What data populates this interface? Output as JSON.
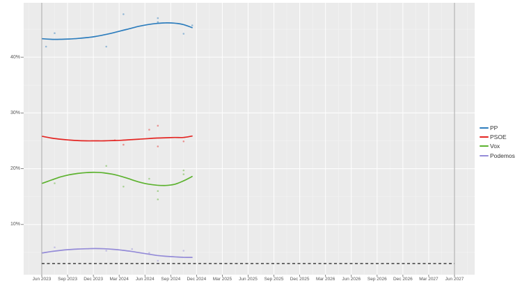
{
  "chart_data": {
    "type": "line",
    "title": "",
    "description": "Spanish opinion polling: smoothed trend lines with individual poll scatter points, 3% threshold dashed line, vertical reference lines at Jun 2023 and Jun 2027",
    "x_axis": {
      "tick_labels": [
        "Jun 2023",
        "Sep 2023",
        "Dec 2023",
        "Mar 2024",
        "Jun 2024",
        "Sep 2024",
        "Dec 2024",
        "Mar 2025",
        "Jun 2025",
        "Sep 2025",
        "Dec 2025",
        "Mar 2026",
        "Jun 2026",
        "Sep 2026",
        "Dec 2026",
        "Mar 2027",
        "Jun 2027"
      ]
    },
    "y_axis": {
      "unit": "%",
      "ticks": [
        {
          "label": "40%",
          "value": 40
        },
        {
          "label": "30%",
          "value": 30
        },
        {
          "label": "20%",
          "value": 20
        },
        {
          "label": "10%",
          "value": 10
        }
      ],
      "minor_tick_values": [
        5,
        15,
        25,
        35,
        45
      ],
      "range": [
        1,
        49.7
      ]
    },
    "threshold": {
      "value": 3,
      "style": "dashed"
    },
    "reference_lines": [
      {
        "date": "2023-06"
      },
      {
        "date": "2027-06"
      }
    ],
    "legend": {
      "position": "right",
      "entries": [
        {
          "label": "PP",
          "color": "#2d7dbd"
        },
        {
          "label": "PSOE",
          "color": "#e42522"
        },
        {
          "label": "Vox",
          "color": "#5cb22e"
        },
        {
          "label": "Podemos",
          "color": "#948bd8"
        }
      ]
    },
    "series": [
      {
        "name": "PP",
        "color": "#2d7dbd",
        "trend": {
          "from": "2023-06",
          "to": "2024-11",
          "values": [
            43.3,
            43.2,
            43.2,
            43.25,
            43.35,
            43.5,
            43.7,
            44.0,
            44.35,
            44.75,
            45.15,
            45.55,
            45.85,
            46.05,
            46.15,
            46.1,
            45.85,
            45.3
          ]
        },
        "polls": [
          {
            "date": "2023-06",
            "value": 41.9
          },
          {
            "date": "2023-07",
            "value": 44.3
          },
          {
            "date": "2024-01",
            "value": 41.9
          },
          {
            "date": "2024-03",
            "value": 47.7
          },
          {
            "date": "2024-07",
            "value": 47.0
          },
          {
            "date": "2024-07",
            "value": 46.3
          },
          {
            "date": "2024-10",
            "value": 44.2
          },
          {
            "date": "2024-11",
            "value": 45.7
          }
        ]
      },
      {
        "name": "PSOE",
        "color": "#e42522",
        "trend": {
          "from": "2023-06",
          "to": "2024-11",
          "values": [
            25.8,
            25.5,
            25.3,
            25.15,
            25.05,
            25.0,
            25.0,
            25.0,
            25.05,
            25.1,
            25.2,
            25.3,
            25.4,
            25.5,
            25.55,
            25.6,
            25.6,
            25.85
          ]
        },
        "polls": [
          {
            "date": "2024-02",
            "value": 25.1
          },
          {
            "date": "2024-03",
            "value": 24.3
          },
          {
            "date": "2024-06",
            "value": 27.0
          },
          {
            "date": "2024-07",
            "value": 27.7
          },
          {
            "date": "2024-07",
            "value": 24.0
          },
          {
            "date": "2024-10",
            "value": 24.9
          }
        ]
      },
      {
        "name": "Vox",
        "color": "#5cb22e",
        "trend": {
          "from": "2023-06",
          "to": "2024-11",
          "values": [
            17.4,
            17.95,
            18.5,
            18.9,
            19.15,
            19.3,
            19.35,
            19.25,
            19.0,
            18.6,
            18.1,
            17.6,
            17.25,
            17.05,
            17.0,
            17.2,
            17.8,
            18.6
          ]
        },
        "polls": [
          {
            "date": "2023-07",
            "value": 17.4
          },
          {
            "date": "2024-01",
            "value": 20.5
          },
          {
            "date": "2024-03",
            "value": 16.8
          },
          {
            "date": "2024-06",
            "value": 18.2
          },
          {
            "date": "2024-07",
            "value": 14.5
          },
          {
            "date": "2024-07",
            "value": 16.0
          },
          {
            "date": "2024-10",
            "value": 19.0
          },
          {
            "date": "2024-10",
            "value": 19.7
          }
        ]
      },
      {
        "name": "Podemos",
        "color": "#948bd8",
        "trend": {
          "from": "2023-06",
          "to": "2024-11",
          "values": [
            4.9,
            5.15,
            5.35,
            5.5,
            5.6,
            5.65,
            5.68,
            5.65,
            5.55,
            5.4,
            5.2,
            4.95,
            4.7,
            4.45,
            4.3,
            4.2,
            4.12,
            4.1
          ]
        },
        "polls": [
          {
            "date": "2023-07",
            "value": 5.9
          },
          {
            "date": "2024-01",
            "value": 5.3
          },
          {
            "date": "2024-04",
            "value": 5.6
          },
          {
            "date": "2024-06",
            "value": 4.9
          },
          {
            "date": "2024-07",
            "value": 3.5
          },
          {
            "date": "2024-10",
            "value": 5.3
          }
        ]
      }
    ]
  },
  "colors": {
    "page_bg": "#ffffff",
    "panel_bg": "#ebebeb",
    "grid_major": "#fdfdfd",
    "grid_minor": "#f3f3f3",
    "axis_text": "#555555",
    "tick_mark": "#666666",
    "reference_line": "#a6a6a6",
    "threshold_line": "#2e2e2e"
  }
}
